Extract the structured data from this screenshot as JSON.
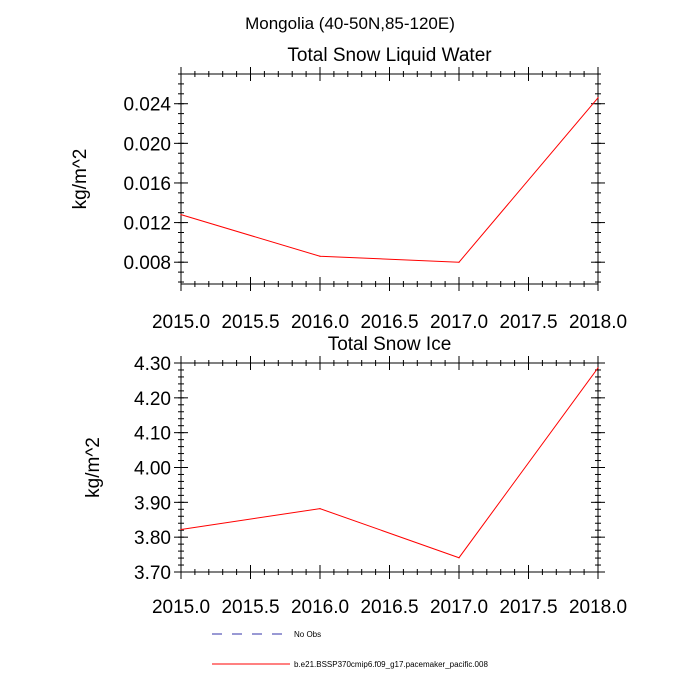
{
  "suptitle": "Mongolia (40-50N,85-120E)",
  "colors": {
    "model": "#ff0000",
    "obs": "#3333aa",
    "axis": "#000000"
  },
  "legend": [
    {
      "label": "No Obs",
      "style": "dashed",
      "color": "#3333aa"
    },
    {
      "label": "b.e21.BSSP370cmip6.f09_g17.pacemaker_pacific.008",
      "style": "solid",
      "color": "#ff0000"
    }
  ],
  "chart_data": [
    {
      "type": "line",
      "title": "Total Snow Liquid Water",
      "xlabel": "",
      "ylabel": "kg/m^2",
      "xlim": [
        2015.0,
        2018.0
      ],
      "ylim": [
        0.0058,
        0.027
      ],
      "xticks": [
        2015.0,
        2015.5,
        2016.0,
        2016.5,
        2017.0,
        2017.5,
        2018.0
      ],
      "xtick_labels": [
        "2015.0",
        "2015.5",
        "2016.0",
        "2016.5",
        "2017.0",
        "2017.5",
        "2018.0"
      ],
      "yticks": [
        0.008,
        0.012,
        0.016,
        0.02,
        0.024
      ],
      "ytick_labels": [
        "0.008",
        "0.012",
        "0.016",
        "0.020",
        "0.024"
      ],
      "yminor_step": 0.001,
      "series": [
        {
          "name": "b.e21.BSSP370cmip6.f09_g17.pacemaker_pacific.008",
          "x": [
            2015,
            2016,
            2017,
            2018
          ],
          "values": [
            0.0128,
            0.0086,
            0.008,
            0.0246
          ]
        }
      ]
    },
    {
      "type": "line",
      "title": "Total Snow Ice",
      "xlabel": "",
      "ylabel": "kg/m^2",
      "xlim": [
        2015.0,
        2018.0
      ],
      "ylim": [
        3.7,
        4.3
      ],
      "xticks": [
        2015.0,
        2015.5,
        2016.0,
        2016.5,
        2017.0,
        2017.5,
        2018.0
      ],
      "xtick_labels": [
        "2015.0",
        "2015.5",
        "2016.0",
        "2016.5",
        "2017.0",
        "2017.5",
        "2018.0"
      ],
      "yticks": [
        3.7,
        3.8,
        3.9,
        4.0,
        4.1,
        4.2,
        4.3
      ],
      "ytick_labels": [
        "3.70",
        "3.80",
        "3.90",
        "4.00",
        "4.10",
        "4.20",
        "4.30"
      ],
      "yminor_step": 0.02,
      "series": [
        {
          "name": "b.e21.BSSP370cmip6.f09_g17.pacemaker_pacific.008",
          "x": [
            2015,
            2016,
            2017,
            2018
          ],
          "values": [
            3.822,
            3.882,
            3.741,
            4.286
          ]
        }
      ]
    }
  ]
}
